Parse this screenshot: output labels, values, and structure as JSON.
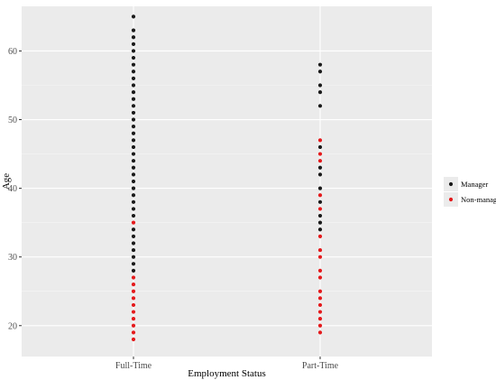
{
  "chart_data": {
    "type": "scatter",
    "xlabel": "Employment Status",
    "ylabel": "Age",
    "categories": [
      "Full-Time",
      "Part-Time"
    ],
    "yticks": [
      20,
      30,
      40,
      50,
      60
    ],
    "ylim": [
      15.5,
      66.5
    ],
    "grid": true,
    "legend_position": "right",
    "series": [
      {
        "name": "Manager",
        "color": "#1a1a1a",
        "points": [
          {
            "x": "Full-Time",
            "y": 28
          },
          {
            "x": "Full-Time",
            "y": 29
          },
          {
            "x": "Full-Time",
            "y": 30
          },
          {
            "x": "Full-Time",
            "y": 31
          },
          {
            "x": "Full-Time",
            "y": 32
          },
          {
            "x": "Full-Time",
            "y": 33
          },
          {
            "x": "Full-Time",
            "y": 34
          },
          {
            "x": "Full-Time",
            "y": 36
          },
          {
            "x": "Full-Time",
            "y": 37
          },
          {
            "x": "Full-Time",
            "y": 38
          },
          {
            "x": "Full-Time",
            "y": 39
          },
          {
            "x": "Full-Time",
            "y": 40
          },
          {
            "x": "Full-Time",
            "y": 41
          },
          {
            "x": "Full-Time",
            "y": 42
          },
          {
            "x": "Full-Time",
            "y": 43
          },
          {
            "x": "Full-Time",
            "y": 44
          },
          {
            "x": "Full-Time",
            "y": 45
          },
          {
            "x": "Full-Time",
            "y": 46
          },
          {
            "x": "Full-Time",
            "y": 47
          },
          {
            "x": "Full-Time",
            "y": 48
          },
          {
            "x": "Full-Time",
            "y": 49
          },
          {
            "x": "Full-Time",
            "y": 50
          },
          {
            "x": "Full-Time",
            "y": 51
          },
          {
            "x": "Full-Time",
            "y": 52
          },
          {
            "x": "Full-Time",
            "y": 53
          },
          {
            "x": "Full-Time",
            "y": 54
          },
          {
            "x": "Full-Time",
            "y": 55
          },
          {
            "x": "Full-Time",
            "y": 56
          },
          {
            "x": "Full-Time",
            "y": 57
          },
          {
            "x": "Full-Time",
            "y": 58
          },
          {
            "x": "Full-Time",
            "y": 59
          },
          {
            "x": "Full-Time",
            "y": 60
          },
          {
            "x": "Full-Time",
            "y": 61
          },
          {
            "x": "Full-Time",
            "y": 62
          },
          {
            "x": "Full-Time",
            "y": 63
          },
          {
            "x": "Full-Time",
            "y": 65
          },
          {
            "x": "Part-Time",
            "y": 34
          },
          {
            "x": "Part-Time",
            "y": 35
          },
          {
            "x": "Part-Time",
            "y": 36
          },
          {
            "x": "Part-Time",
            "y": 38
          },
          {
            "x": "Part-Time",
            "y": 40
          },
          {
            "x": "Part-Time",
            "y": 42
          },
          {
            "x": "Part-Time",
            "y": 43
          },
          {
            "x": "Part-Time",
            "y": 46
          },
          {
            "x": "Part-Time",
            "y": 52
          },
          {
            "x": "Part-Time",
            "y": 54
          },
          {
            "x": "Part-Time",
            "y": 55
          },
          {
            "x": "Part-Time",
            "y": 57
          },
          {
            "x": "Part-Time",
            "y": 58
          }
        ]
      },
      {
        "name": "Non-manager",
        "color": "#e41a1c",
        "points": [
          {
            "x": "Full-Time",
            "y": 18
          },
          {
            "x": "Full-Time",
            "y": 19
          },
          {
            "x": "Full-Time",
            "y": 20
          },
          {
            "x": "Full-Time",
            "y": 21
          },
          {
            "x": "Full-Time",
            "y": 22
          },
          {
            "x": "Full-Time",
            "y": 23
          },
          {
            "x": "Full-Time",
            "y": 24
          },
          {
            "x": "Full-Time",
            "y": 25
          },
          {
            "x": "Full-Time",
            "y": 26
          },
          {
            "x": "Full-Time",
            "y": 27
          },
          {
            "x": "Full-Time",
            "y": 35
          },
          {
            "x": "Part-Time",
            "y": 19
          },
          {
            "x": "Part-Time",
            "y": 20
          },
          {
            "x": "Part-Time",
            "y": 21
          },
          {
            "x": "Part-Time",
            "y": 22
          },
          {
            "x": "Part-Time",
            "y": 23
          },
          {
            "x": "Part-Time",
            "y": 24
          },
          {
            "x": "Part-Time",
            "y": 25
          },
          {
            "x": "Part-Time",
            "y": 27
          },
          {
            "x": "Part-Time",
            "y": 28
          },
          {
            "x": "Part-Time",
            "y": 30
          },
          {
            "x": "Part-Time",
            "y": 31
          },
          {
            "x": "Part-Time",
            "y": 33
          },
          {
            "x": "Part-Time",
            "y": 37
          },
          {
            "x": "Part-Time",
            "y": 39
          },
          {
            "x": "Part-Time",
            "y": 44
          },
          {
            "x": "Part-Time",
            "y": 45
          },
          {
            "x": "Part-Time",
            "y": 47
          }
        ]
      }
    ]
  }
}
